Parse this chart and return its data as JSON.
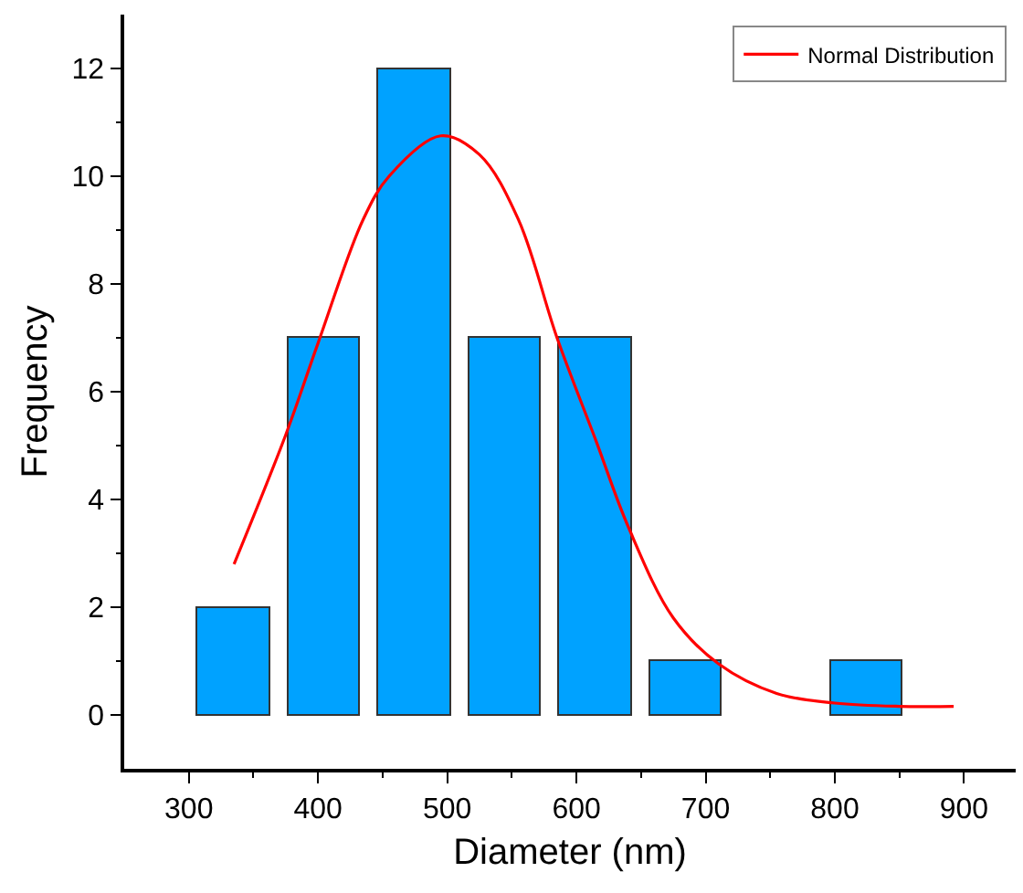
{
  "chart_data": {
    "type": "histogram",
    "xlabel": "Diameter (nm)",
    "ylabel": "Frequency",
    "bins": [
      300,
      370,
      440,
      510,
      580,
      650,
      720,
      790,
      860
    ],
    "values": [
      2,
      7,
      12,
      7,
      7,
      1,
      0,
      1
    ],
    "color": "#00a2ff",
    "series": [
      {
        "name": "Normal Distribution",
        "type": "line",
        "color": "#ff0000",
        "x": [
          335,
          375,
          400,
          435,
          455,
          495,
          525,
          555,
          585,
          615,
          640,
          675,
          710,
          755,
          800,
          850,
          892
        ],
        "values": [
          2.8,
          5.2,
          6.9,
          9.2,
          10.0,
          10.75,
          10.4,
          9.2,
          7.0,
          5.1,
          3.5,
          1.8,
          0.95,
          0.4,
          0.22,
          0.16,
          0.16
        ]
      }
    ],
    "xlim": [
      250,
      940
    ],
    "ylim": [
      -1,
      13
    ],
    "xticks": [
      300,
      400,
      500,
      600,
      700,
      800,
      900
    ],
    "yticks": [
      0,
      2,
      4,
      6,
      8,
      10,
      12
    ],
    "legend": "top right",
    "marker": "none",
    "line_style": "solid"
  }
}
